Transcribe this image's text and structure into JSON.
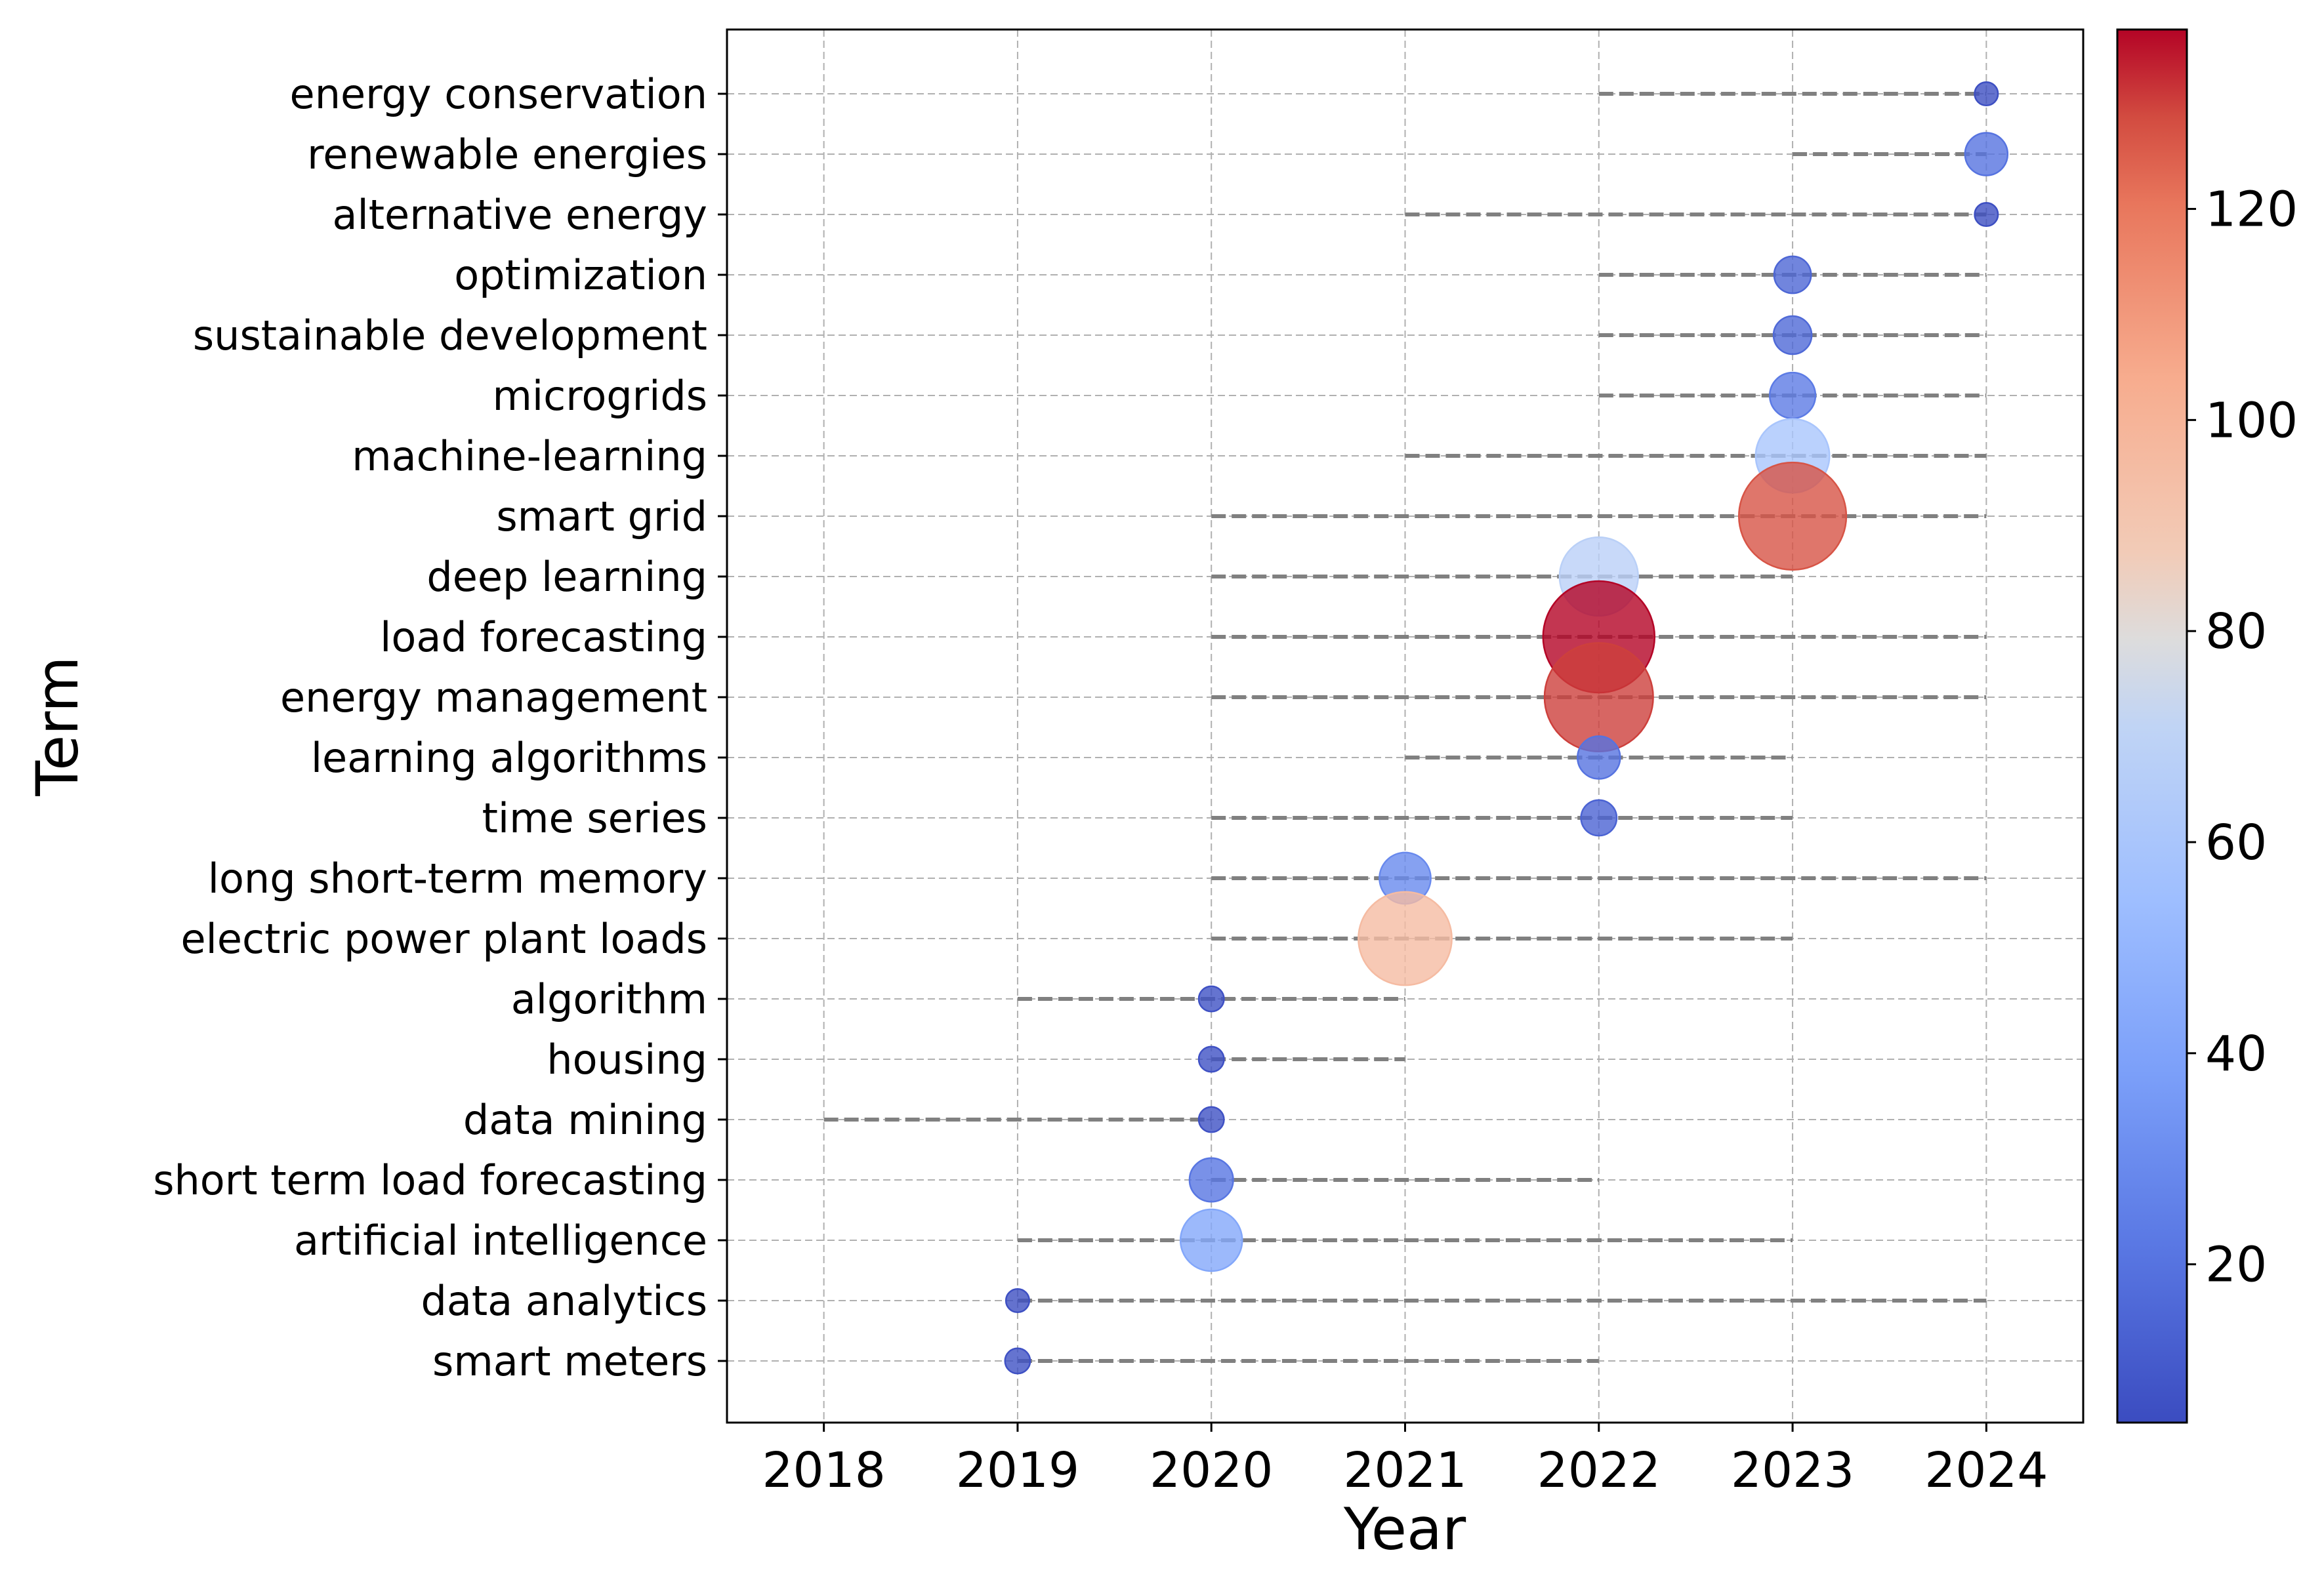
{
  "chart_data": {
    "type": "scatter",
    "subtype": "trend-topics-bubble-timeline",
    "title": "",
    "xlabel": "Year",
    "ylabel": "Term",
    "xlim": [
      2017.5,
      2024.5
    ],
    "xticks": [
      2018,
      2019,
      2020,
      2021,
      2022,
      2023,
      2024
    ],
    "grid": true,
    "line_style": "dashed",
    "colorbar": {
      "cmap": "coolwarm",
      "range": [
        5,
        137
      ],
      "ticks": [
        20,
        40,
        60,
        80,
        100,
        120
      ]
    },
    "terms": [
      {
        "term": "energy conservation",
        "start": 2022,
        "end": 2024,
        "peak": 2024,
        "frequency": 6
      },
      {
        "term": "renewable energies",
        "start": 2023,
        "end": 2024,
        "peak": 2024,
        "frequency": 20
      },
      {
        "term": "alternative energy",
        "start": 2021,
        "end": 2024,
        "peak": 2024,
        "frequency": 6
      },
      {
        "term": "optimization",
        "start": 2022,
        "end": 2024,
        "peak": 2023,
        "frequency": 15
      },
      {
        "term": "sustainable development",
        "start": 2022,
        "end": 2024,
        "peak": 2023,
        "frequency": 16
      },
      {
        "term": "microgrids",
        "start": 2022,
        "end": 2024,
        "peak": 2023,
        "frequency": 23
      },
      {
        "term": "machine-learning",
        "start": 2021,
        "end": 2024,
        "peak": 2023,
        "frequency": 60
      },
      {
        "term": "smart grid",
        "start": 2020,
        "end": 2024,
        "peak": 2023,
        "frequency": 127
      },
      {
        "term": "deep learning",
        "start": 2020,
        "end": 2023,
        "peak": 2022,
        "frequency": 68
      },
      {
        "term": "load forecasting",
        "start": 2020,
        "end": 2024,
        "peak": 2022,
        "frequency": 137
      },
      {
        "term": "energy management",
        "start": 2020,
        "end": 2024,
        "peak": 2022,
        "frequency": 130
      },
      {
        "term": "learning algorithms",
        "start": 2021,
        "end": 2023,
        "peak": 2022,
        "frequency": 20
      },
      {
        "term": "time series",
        "start": 2020,
        "end": 2023,
        "peak": 2022,
        "frequency": 14
      },
      {
        "term": "long short-term memory",
        "start": 2020,
        "end": 2024,
        "peak": 2021,
        "frequency": 29
      },
      {
        "term": "electric power plant loads",
        "start": 2020,
        "end": 2023,
        "peak": 2021,
        "frequency": 96
      },
      {
        "term": "algorithm",
        "start": 2019,
        "end": 2021,
        "peak": 2020,
        "frequency": 7
      },
      {
        "term": "housing",
        "start": 2020,
        "end": 2021,
        "peak": 2020,
        "frequency": 7
      },
      {
        "term": "data mining",
        "start": 2018,
        "end": 2020,
        "peak": 2020,
        "frequency": 7
      },
      {
        "term": "short term load forecasting",
        "start": 2020,
        "end": 2022,
        "peak": 2020,
        "frequency": 21
      },
      {
        "term": "artificial intelligence",
        "start": 2019,
        "end": 2023,
        "peak": 2020,
        "frequency": 42
      },
      {
        "term": "data analytics",
        "start": 2019,
        "end": 2024,
        "peak": 2019,
        "frequency": 6
      },
      {
        "term": "smart meters",
        "start": 2019,
        "end": 2022,
        "peak": 2019,
        "frequency": 7
      }
    ]
  }
}
